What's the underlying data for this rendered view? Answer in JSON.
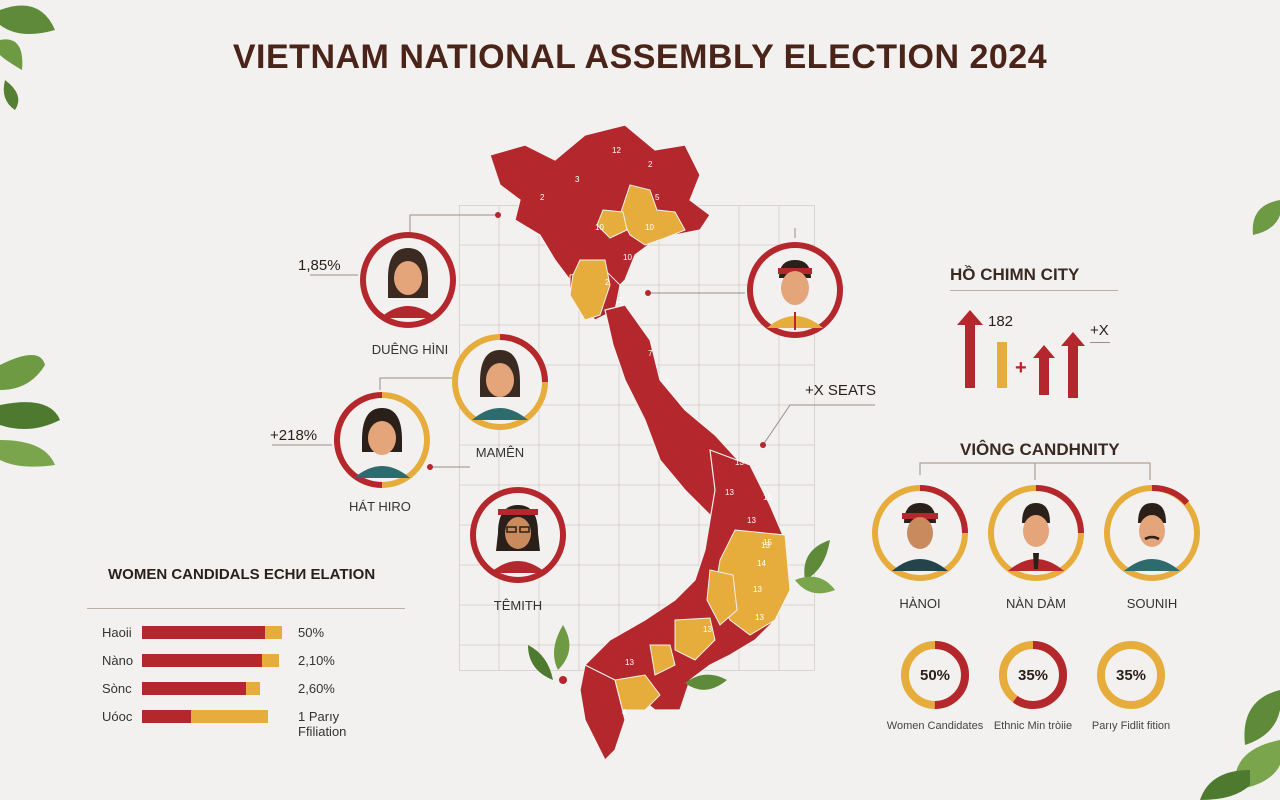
{
  "title": "VIETNAM NATIONAL ASSEMBLY ELECTION 2024",
  "colors": {
    "red": "#b3272d",
    "gold": "#e6ad3c",
    "bg": "#f2f1ef",
    "dark": "#4a2418"
  },
  "map": {
    "region_labels_north": [
      "12",
      "2",
      "2",
      "3",
      "5",
      "10",
      "10",
      "2",
      "10"
    ],
    "region_labels_central": [
      "2",
      "7",
      "7",
      "13",
      "13",
      "15",
      "13",
      "15"
    ],
    "region_labels_south": [
      "13",
      "14",
      "13",
      "13",
      "13",
      "13",
      "4"
    ]
  },
  "candidates": [
    {
      "name": "DUÊNG HÌNI",
      "value": "1,85%",
      "icon": "woman-avatar-icon"
    },
    {
      "name": "MAMÊN",
      "icon": "woman-avatar-icon"
    },
    {
      "name": "HÁT HIRO",
      "value": "+218%",
      "icon": "woman-avatar-icon"
    },
    {
      "name": "TÊMITH",
      "icon": "woman-headscarf-avatar-icon"
    },
    {
      "name": "",
      "icon": "man-headband-avatar-icon"
    }
  ],
  "seats_callout": "+X SEATS",
  "city": {
    "title": "HỒ CHIMN CITY",
    "bars_value": "182",
    "plus": "+",
    "change": "+X"
  },
  "women_section": {
    "title": "WOMEN CANDIDALS ECHИ ELATION",
    "rows": [
      {
        "label": "Haoii",
        "value": "50%",
        "red": 0.88,
        "gold": 0.12
      },
      {
        "label": "Nàno",
        "value": "2,10%",
        "red": 0.86,
        "gold": 0.12
      },
      {
        "label": "Sònc",
        "value": "2,60%",
        "red": 0.74,
        "gold": 0.1
      },
      {
        "label": "Uóoc",
        "value": "1 Parıy Ffiliation",
        "red": 0.35,
        "gold": 0.55
      }
    ]
  },
  "candidacy": {
    "title": "VIÔNG CANDHNITY",
    "people": [
      {
        "name": "HÀNOI",
        "icon": "man-headband-avatar-icon"
      },
      {
        "name": "NÀN DÀM",
        "icon": "man-avatar-icon"
      },
      {
        "name": "SOUNIH",
        "icon": "man-mustache-avatar-icon"
      }
    ]
  },
  "donuts": [
    {
      "value_label": "50%",
      "caption": "Women Candidates",
      "fraction": 0.5
    },
    {
      "value_label": "35%",
      "caption": "Ethnic Min tròiie",
      "fraction": 0.35
    },
    {
      "value_label": "35%",
      "caption": "Parıy Fidlit fition",
      "fraction": 0.35
    }
  ]
}
